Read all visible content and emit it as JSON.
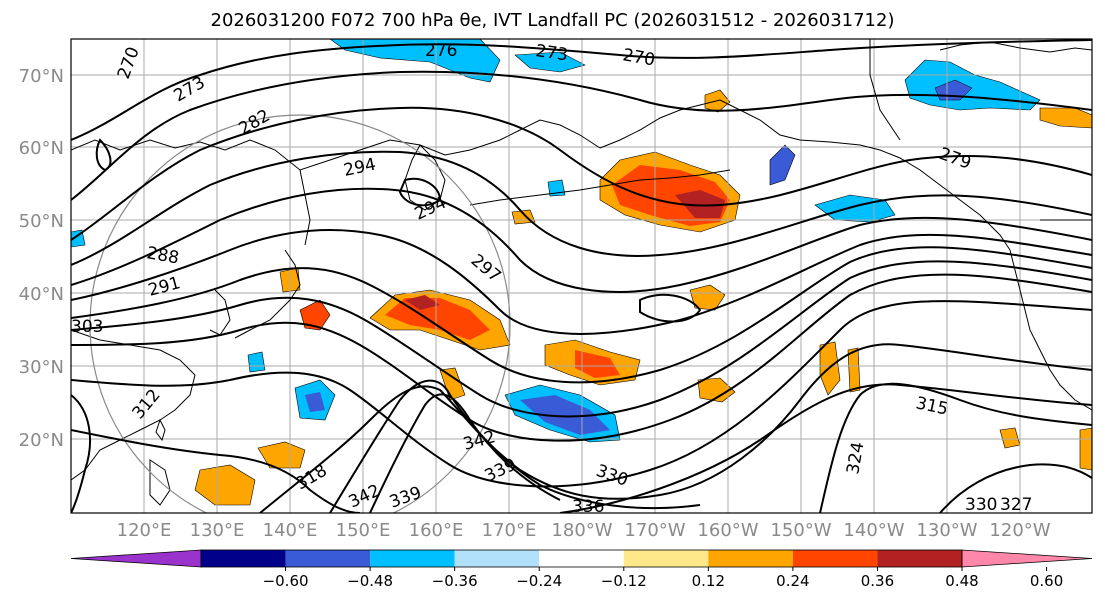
{
  "title": "2026031200 F072 700 hPa θe, IVT Landfall PC (2026031512 - 2026031712)",
  "lat_labels": [
    "70°N",
    "60°N",
    "50°N",
    "40°N",
    "30°N",
    "20°N"
  ],
  "lon_labels": [
    "120°E",
    "130°E",
    "140°E",
    "150°E",
    "160°E",
    "170°E",
    "180°W",
    "170°W",
    "160°W",
    "150°W",
    "140°W",
    "130°W",
    "120°W"
  ],
  "contour_labels": [
    {
      "id": "c270a",
      "text": "270"
    },
    {
      "id": "c276",
      "text": "276"
    },
    {
      "id": "c273a",
      "text": "273"
    },
    {
      "id": "c270b",
      "text": "270"
    },
    {
      "id": "c273b",
      "text": "273"
    },
    {
      "id": "c282",
      "text": "282"
    },
    {
      "id": "c294a",
      "text": "294"
    },
    {
      "id": "c294b",
      "text": "294"
    },
    {
      "id": "c288",
      "text": "288"
    },
    {
      "id": "c291",
      "text": "291"
    },
    {
      "id": "c297",
      "text": "297"
    },
    {
      "id": "c303",
      "text": "303"
    },
    {
      "id": "c279",
      "text": "279"
    },
    {
      "id": "c315",
      "text": "315"
    },
    {
      "id": "c324",
      "text": "324"
    },
    {
      "id": "c342a",
      "text": "342"
    },
    {
      "id": "c339a",
      "text": "339"
    },
    {
      "id": "c342b",
      "text": "342"
    },
    {
      "id": "c339b",
      "text": "339"
    },
    {
      "id": "c330",
      "text": "330"
    },
    {
      "id": "c336",
      "text": "336"
    },
    {
      "id": "c318",
      "text": "318"
    },
    {
      "id": "c312",
      "text": "312"
    },
    {
      "id": "c330b",
      "text": "330"
    },
    {
      "id": "c327",
      "text": "327"
    }
  ],
  "colorbar": {
    "ticks": [
      "−0.60",
      "−0.48",
      "−0.36",
      "−0.24",
      "−0.12",
      "0.12",
      "0.24",
      "0.36",
      "0.48",
      "0.60"
    ],
    "colors": [
      "#9933cc",
      "#00008b",
      "#3a5bd6",
      "#00bfff",
      "#b0e0fa",
      "#ffffff",
      "#ffe88a",
      "#ffa500",
      "#ff4500",
      "#b22222",
      "#ff88aa"
    ]
  },
  "colors": {
    "land_line": "#000000",
    "contour": "#000000",
    "grid": "#aaaaaa",
    "circle": "#888888"
  }
}
